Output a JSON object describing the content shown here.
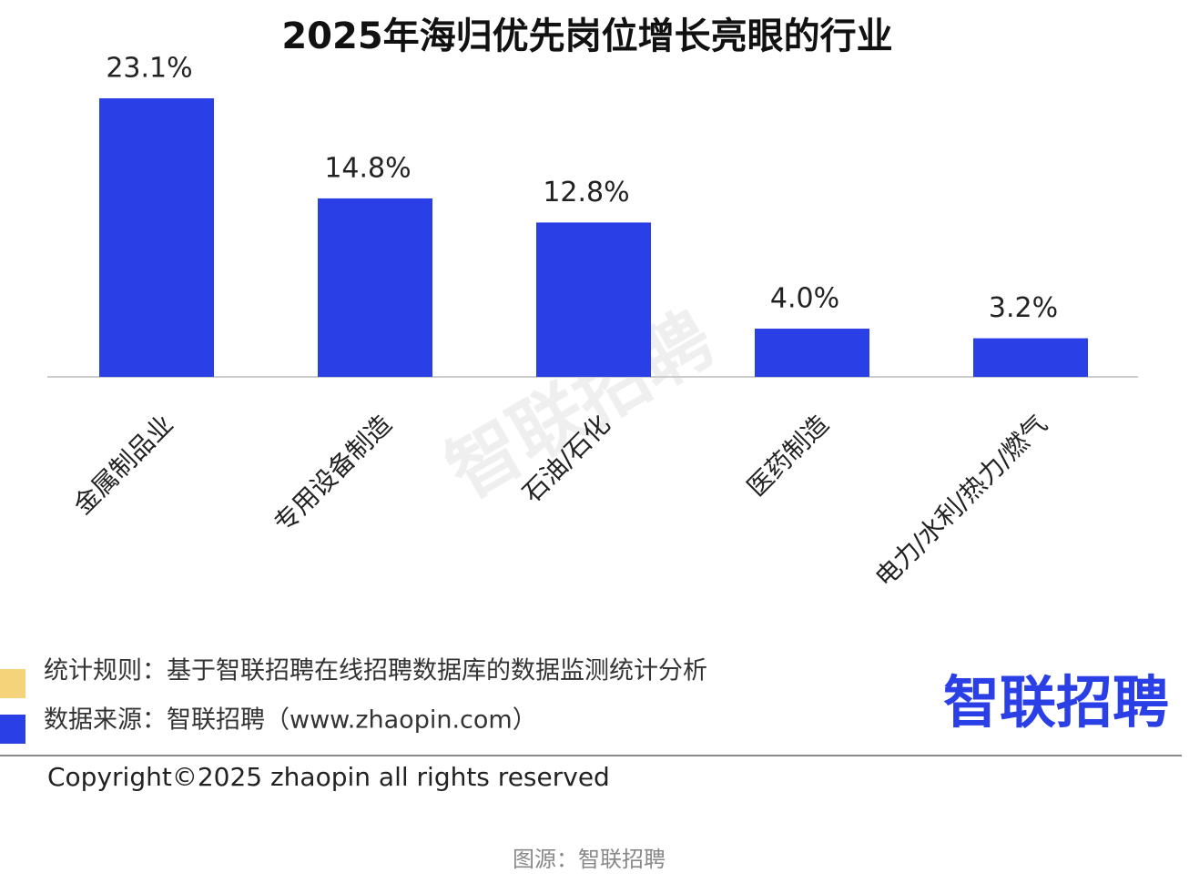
{
  "chart_data": {
    "type": "bar",
    "title": "2025年海归优先岗位增长亮眼的行业",
    "categories": [
      "金属制品业",
      "专用设备制造",
      "石油/石化",
      "医药制造",
      "电力/水利/热力/燃气"
    ],
    "values": [
      23.1,
      14.8,
      12.8,
      4.0,
      3.2
    ],
    "value_labels": [
      "23.1%",
      "14.8%",
      "12.8%",
      "4.0%",
      "3.2%"
    ],
    "color": "#2b3fe6"
  },
  "watermark": "智联招聘",
  "notes": {
    "rule": "统计规则：基于智联招聘在线招聘数据库的数据监测统计分析",
    "source": "数据来源：智联招聘（www.zhaopin.com）"
  },
  "logo": "智联招聘",
  "copyright": "Copyright©2025 zhaopin all rights reserved",
  "caption": "图源：智联招聘"
}
